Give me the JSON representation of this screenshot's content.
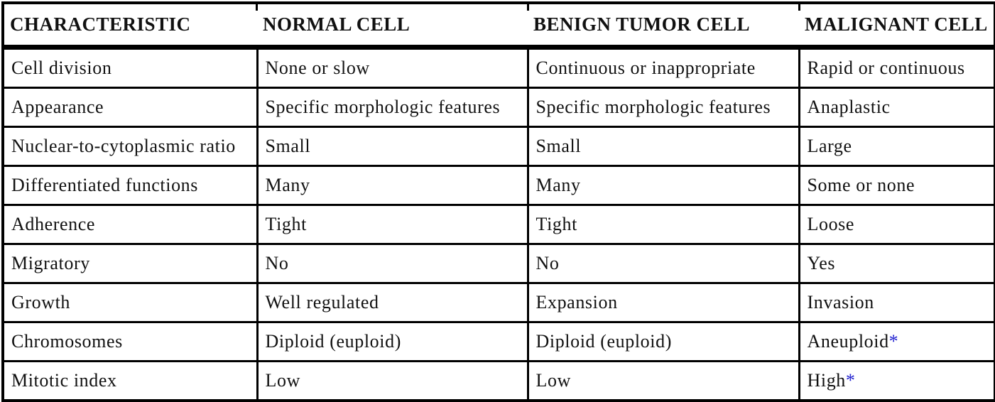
{
  "table": {
    "columns": [
      {
        "key": "characteristic",
        "label": "CHARACTERISTIC"
      },
      {
        "key": "normal-cell",
        "label": "NORMAL CELL"
      },
      {
        "key": "benign-tumor-cell",
        "label": "BENIGN TUMOR CELL"
      },
      {
        "key": "malignant-cell",
        "label": "MALIGNANT CELL"
      }
    ],
    "rows": [
      {
        "cells": [
          {
            "text": "Cell division"
          },
          {
            "text": "None or slow"
          },
          {
            "text": "Continuous or inappropriate"
          },
          {
            "text": "Rapid or continuous"
          }
        ]
      },
      {
        "cells": [
          {
            "text": "Appearance"
          },
          {
            "text": "Specific morphologic features"
          },
          {
            "text": "Specific morphologic features"
          },
          {
            "text": "Anaplastic"
          }
        ]
      },
      {
        "cells": [
          {
            "text": "Nuclear-to-cytoplasmic ratio"
          },
          {
            "text": "Small"
          },
          {
            "text": "Small"
          },
          {
            "text": "Large"
          }
        ]
      },
      {
        "cells": [
          {
            "text": "Differentiated functions"
          },
          {
            "text": "Many"
          },
          {
            "text": "Many"
          },
          {
            "text": "Some or none"
          }
        ]
      },
      {
        "cells": [
          {
            "text": "Adherence"
          },
          {
            "text": "Tight"
          },
          {
            "text": "Tight"
          },
          {
            "text": "Loose"
          }
        ]
      },
      {
        "cells": [
          {
            "text": "Migratory"
          },
          {
            "text": "No"
          },
          {
            "text": "No"
          },
          {
            "text": "Yes"
          }
        ]
      },
      {
        "cells": [
          {
            "text": "Growth"
          },
          {
            "text": "Well regulated"
          },
          {
            "text": "Expansion"
          },
          {
            "text": "Invasion"
          }
        ]
      },
      {
        "cells": [
          {
            "text": "Chromosomes"
          },
          {
            "text": "Diploid (euploid)"
          },
          {
            "text": "Diploid (euploid)"
          },
          {
            "text": "Aneuploid",
            "star": "*"
          }
        ]
      },
      {
        "cells": [
          {
            "text": "Mitotic index"
          },
          {
            "text": "Low"
          },
          {
            "text": "Low"
          },
          {
            "text": "High",
            "star": "*"
          }
        ]
      }
    ],
    "colors": {
      "text": "#111111",
      "border": "#000000",
      "background": "#FFFFFF",
      "asterisk": "#2323D0"
    }
  }
}
